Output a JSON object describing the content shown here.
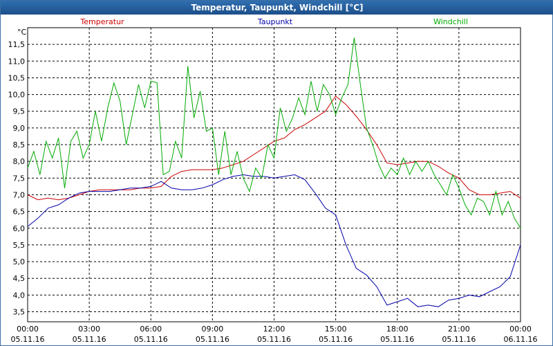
{
  "window": {
    "title": "Temperatur, Taupunkt, Windchill [°C]"
  },
  "chart_data": {
    "type": "line",
    "title": "Temperatur, Taupunkt, Windchill [°C]",
    "ylabel": "°C",
    "xlabel": "",
    "ylim": [
      3.2,
      12.0
    ],
    "yticks": [
      "3,5",
      "4,0",
      "4,5",
      "5,0",
      "5,5",
      "6,0",
      "6,5",
      "7,0",
      "7,5",
      "8,0",
      "8,5",
      "9,0",
      "9,5",
      "10,0",
      "10,5",
      "11,0",
      "11,5"
    ],
    "xlim": [
      0,
      24
    ],
    "xticks": [
      {
        "time": "00:00",
        "date": "05.11.16"
      },
      {
        "time": "03:00",
        "date": "05.11.16"
      },
      {
        "time": "06:00",
        "date": "05.11.16"
      },
      {
        "time": "09:00",
        "date": "05.11.16"
      },
      {
        "time": "12:00",
        "date": "05.11.16"
      },
      {
        "time": "15:00",
        "date": "05.11.16"
      },
      {
        "time": "18:00",
        "date": "05.11.16"
      },
      {
        "time": "21:00",
        "date": "05.11.16"
      },
      {
        "time": "00:00",
        "date": "06.11.16"
      }
    ],
    "grid": true,
    "legend": "top",
    "series": [
      {
        "name": "Temperatur",
        "color": "#cc0000",
        "x": [
          0,
          0.5,
          1,
          1.5,
          2,
          2.5,
          3,
          3.5,
          4,
          4.5,
          5,
          5.5,
          6,
          6.5,
          7,
          7.5,
          8,
          8.5,
          9,
          9.5,
          10,
          10.5,
          11,
          11.5,
          12,
          12.5,
          13,
          13.5,
          14,
          14.5,
          15,
          15.5,
          16,
          16.5,
          17,
          17.5,
          18,
          18.5,
          19,
          19.5,
          20,
          20.5,
          21,
          21.5,
          22,
          22.5,
          23,
          23.5,
          24
        ],
        "values": [
          7.0,
          6.85,
          6.9,
          6.85,
          6.9,
          7.0,
          7.1,
          7.15,
          7.15,
          7.15,
          7.15,
          7.2,
          7.2,
          7.25,
          7.55,
          7.7,
          7.75,
          7.75,
          7.75,
          7.8,
          7.9,
          8.0,
          8.2,
          8.4,
          8.6,
          8.7,
          8.95,
          9.1,
          9.3,
          9.5,
          9.95,
          9.7,
          9.35,
          8.95,
          8.5,
          7.95,
          7.9,
          7.95,
          8.0,
          8.0,
          7.85,
          7.65,
          7.5,
          7.15,
          7.0,
          7.0,
          7.05,
          7.1,
          6.9
        ]
      },
      {
        "name": "Taupunkt",
        "color": "#0000aa",
        "x": [
          0,
          0.5,
          1,
          1.5,
          2,
          2.5,
          3,
          3.5,
          4,
          4.5,
          5,
          5.5,
          6,
          6.5,
          7,
          7.5,
          8,
          8.5,
          9,
          9.5,
          10,
          10.5,
          11,
          11.5,
          12,
          12.5,
          13,
          13.5,
          14,
          14.5,
          15,
          15.5,
          16,
          16.5,
          17,
          17.5,
          18,
          18.5,
          19,
          19.5,
          20,
          20.5,
          21,
          21.5,
          22,
          22.5,
          23,
          23.5,
          24
        ],
        "values": [
          6.05,
          6.3,
          6.6,
          6.7,
          6.9,
          7.05,
          7.1,
          7.1,
          7.1,
          7.15,
          7.2,
          7.2,
          7.25,
          7.4,
          7.2,
          7.15,
          7.15,
          7.2,
          7.3,
          7.45,
          7.55,
          7.6,
          7.55,
          7.55,
          7.5,
          7.55,
          7.6,
          7.45,
          7.05,
          6.6,
          6.4,
          5.5,
          4.8,
          4.6,
          4.25,
          3.7,
          3.8,
          3.9,
          3.65,
          3.7,
          3.65,
          3.85,
          3.9,
          4.0,
          3.95,
          4.1,
          4.25,
          4.55,
          5.5
        ]
      },
      {
        "name": "Windchill",
        "color": "#00aa00",
        "x": [
          0,
          0.3,
          0.6,
          0.9,
          1.2,
          1.5,
          1.8,
          2.1,
          2.4,
          2.7,
          3.0,
          3.3,
          3.6,
          3.9,
          4.2,
          4.5,
          4.8,
          5.1,
          5.4,
          5.7,
          6.0,
          6.3,
          6.6,
          6.9,
          7.2,
          7.5,
          7.8,
          8.1,
          8.4,
          8.7,
          9.0,
          9.3,
          9.6,
          9.9,
          10.2,
          10.5,
          10.8,
          11.1,
          11.4,
          11.7,
          12.0,
          12.3,
          12.6,
          12.9,
          13.2,
          13.5,
          13.8,
          14.1,
          14.4,
          14.7,
          15.0,
          15.3,
          15.6,
          15.9,
          16.2,
          16.5,
          16.8,
          17.1,
          17.4,
          17.7,
          18.0,
          18.3,
          18.6,
          18.9,
          19.2,
          19.5,
          19.8,
          20.1,
          20.4,
          20.7,
          21.0,
          21.3,
          21.6,
          21.9,
          22.2,
          22.5,
          22.8,
          23.1,
          23.4,
          23.7,
          24.0
        ],
        "values": [
          7.8,
          8.3,
          7.6,
          8.6,
          8.1,
          8.7,
          7.2,
          8.6,
          8.9,
          8.1,
          8.5,
          9.5,
          8.6,
          9.6,
          10.35,
          9.8,
          8.5,
          9.4,
          10.3,
          9.6,
          10.4,
          10.35,
          7.6,
          7.7,
          8.6,
          8.1,
          10.85,
          9.3,
          10.1,
          8.9,
          9.0,
          7.6,
          8.9,
          7.6,
          8.3,
          7.5,
          7.1,
          7.8,
          7.5,
          8.5,
          8.1,
          9.6,
          8.9,
          9.3,
          9.9,
          9.4,
          10.4,
          9.5,
          10.3,
          10.0,
          9.4,
          9.9,
          10.3,
          11.7,
          10.3,
          9.0,
          8.5,
          7.9,
          7.5,
          7.8,
          7.6,
          8.1,
          7.6,
          8.0,
          7.7,
          8.0,
          7.6,
          7.3,
          7.0,
          7.6,
          7.2,
          6.7,
          6.4,
          6.9,
          6.8,
          6.4,
          7.1,
          6.4,
          6.8,
          6.3,
          6.0
        ]
      }
    ]
  }
}
